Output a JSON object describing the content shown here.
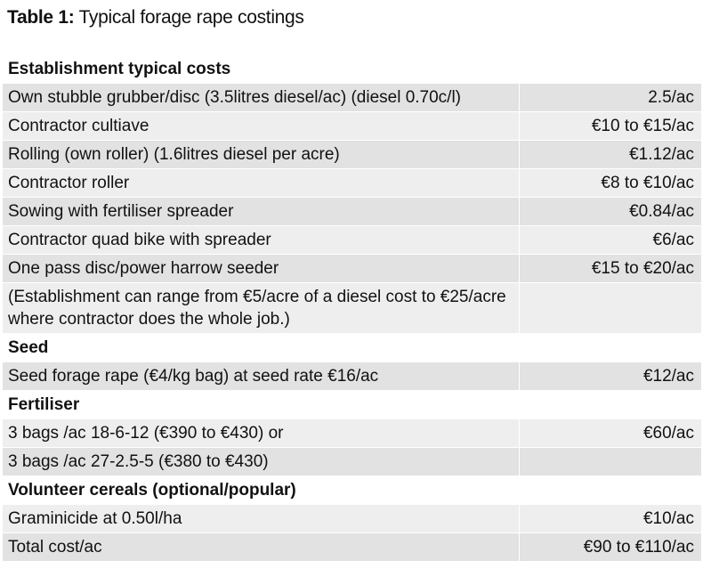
{
  "title": {
    "label": "Table 1:",
    "text": "Typical forage rape costings"
  },
  "table": {
    "rows": [
      {
        "section": "Establishment typical costs"
      },
      {
        "label": "Own stubble grubber/disc (3.5litres diesel/ac) (diesel 0.70c/l)",
        "value": "2.5/ac"
      },
      {
        "label": "Contractor cultiave",
        "value": "€10 to €15/ac"
      },
      {
        "label": "Rolling (own roller) (1.6litres diesel per acre)",
        "value": "€1.12/ac"
      },
      {
        "label": "Contractor roller",
        "value": "€8 to €10/ac"
      },
      {
        "label": "Sowing with fertiliser spreader",
        "value": "€0.84/ac"
      },
      {
        "label": "Contractor quad bike with spreader",
        "value": "€6/ac"
      },
      {
        "label": "One pass disc/power harrow seeder",
        "value": "€15 to €20/ac"
      },
      {
        "label": "(Establishment can range from €5/acre of a diesel cost to €25/acre where contractor does the whole job.)"
      },
      {
        "section": "Seed"
      },
      {
        "label": "Seed forage rape (€4/kg bag) at seed rate €16/ac",
        "value": "€12/ac"
      },
      {
        "section": "Fertiliser"
      },
      {
        "label": "3 bags /ac 18-6-12 (€390 to €430) or",
        "value": "€60/ac"
      },
      {
        "label": "3 bags /ac 27-2.5-5 (€380 to €430)"
      },
      {
        "section": "Volunteer cereals (optional/popular)"
      },
      {
        "label": "Graminicide at 0.50l/ha",
        "value": "€10/ac"
      },
      {
        "label": "Total cost/ac",
        "value": "€90 to €110/ac"
      }
    ]
  }
}
